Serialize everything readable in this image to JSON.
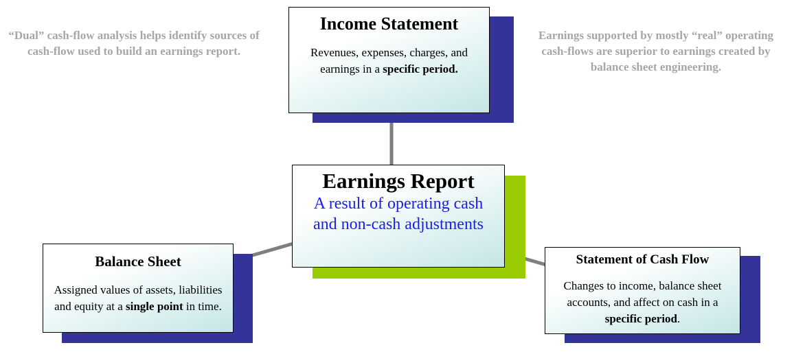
{
  "notes": {
    "left": "“Dual” cash-flow analysis helps identify sources of cash-flow used to build an earnings report.",
    "right": "Earnings supported by mostly “real” operating cash-flows are superior to earnings created by balance sheet engineering."
  },
  "nodes": [
    {
      "title": "Income Statement",
      "body": [
        {
          "text": "Revenues, expenses, charges, and earnings in a ",
          "bold": false
        },
        {
          "text": "specific period.",
          "bold": true
        }
      ]
    },
    {
      "title": "Earnings Report",
      "body": [
        {
          "text": "A result of operating cash and non-cash adjustments",
          "bold": false
        }
      ]
    },
    {
      "title": "Balance Sheet",
      "body": [
        {
          "text": "Assigned values of assets, liabilities and equity at a ",
          "bold": false
        },
        {
          "text": "single point",
          "bold": true
        },
        {
          "text": " in time.",
          "bold": false
        }
      ]
    },
    {
      "title": "Statement of Cash Flow",
      "body": [
        {
          "text": "Changes to income, balance sheet accounts, and affect on cash in a ",
          "bold": false
        },
        {
          "text": "specific period",
          "bold": true
        },
        {
          "text": ".",
          "bold": false
        }
      ]
    }
  ]
}
